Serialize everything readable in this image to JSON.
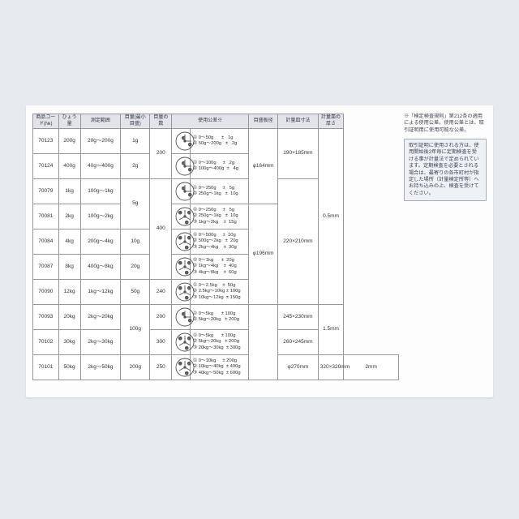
{
  "headers": [
    "商品コード(№)",
    "ひょう量",
    "測定範囲",
    "目量(最小目盛)",
    "目量の数",
    "",
    "使用公差※",
    "目盛板径",
    "計量皿寸法",
    "計量皿の厚さ"
  ],
  "rows": [
    {
      "code": "70123",
      "cap": "200g",
      "range": "20g～200g",
      "div": "1g",
      "cnt": "200",
      "icon": 2,
      "tol": "① 0～50g      ±   1g\n② 50g～200g   ±   2g",
      "plate": "φ164mm",
      "pan": "190×185mm",
      "thk": "0.5mm",
      "cnt_rs": 2,
      "plate_rs": 3,
      "pan_rs": 2,
      "thk_rs": 7
    },
    {
      "code": "70124",
      "cap": "400g",
      "range": "40g～400g",
      "div": "2g",
      "icon": 2,
      "tol": "① 0～100g     ±   2g\n② 100g～400g  ±   4g"
    },
    {
      "code": "70079",
      "cap": "1kg",
      "range": "100g～1kg",
      "div": "5g",
      "cnt": "400",
      "icon": 2,
      "tol": "① 0～250g     ±   5g\n② 250g～1kg   ±  10g",
      "div_rs": 2,
      "cnt_rs": 4,
      "pan": "220×210mm",
      "pan_rs": 5
    },
    {
      "code": "70081",
      "cap": "2kg",
      "range": "100g～2kg",
      "icon": 3,
      "tol": "① 0～250g     ±   5g\n② 250g～1kg   ±  10g\n③ 1kg～2kg    ±  15g",
      "plate": "φ196mm",
      "plate_rs": 4
    },
    {
      "code": "70084",
      "cap": "4kg",
      "range": "200g～4kg",
      "div": "10g",
      "icon": 3,
      "tol": "① 0～500g     ±  10g\n② 500g～2kg   ±  20g\n③ 2kg～4kg    ±  30g"
    },
    {
      "code": "70087",
      "cap": "8kg",
      "range": "400g～8kg",
      "div": "20g",
      "icon": 3,
      "tol": "① 0～1kg      ±  20g\n② 1kg～4kg    ±  40g\n③ 4kg～8kg    ±  60g"
    },
    {
      "code": "70090",
      "cap": "12kg",
      "range": "1kg～12kg",
      "div": "50g",
      "cnt": "240",
      "icon": 3,
      "tol": "① 0～2.5kg    ±  50g\n② 2.5kg～10kg ± 100g\n③ 10kg～12kg  ± 150g"
    },
    {
      "code": "70093",
      "cap": "20kg",
      "range": "2kg～20kg",
      "div": "100g",
      "cnt": "200",
      "icon": 2,
      "tol": "① 0～5kg      ± 100g\n② 5kg～20kg   ± 200g",
      "div_rs": 2,
      "plate": "",
      "pan": "245×230mm",
      "plate_rs": 3,
      "thk": "1.5mm",
      "thk_rs": 2
    },
    {
      "code": "70102",
      "cap": "30kg",
      "range": "2kg～30kg",
      "cnt": "300",
      "icon": 3,
      "tol": "① 0～5kg      ± 100g\n② 5kg～20kg   ± 200g\n③ 20kg～30kg  ± 300g",
      "pan": "260×245mm"
    },
    {
      "code": "70101",
      "cap": "50kg",
      "range": "2kg～50kg",
      "div": "200g",
      "cnt": "250",
      "icon": 3,
      "tol": "① 0～10kg     ± 200g\n② 10kg～40kg  ± 400g\n③ 40kg～50kg  ± 600g",
      "plate": "φ270mm",
      "pan": "320×320mm",
      "thk": "2mm"
    }
  ],
  "note1": "※「検定検査規則」第212条の適用による使用公差。使用公差とは、取引証明用に使用可能な公差。",
  "note2": "取引証明に使用される方は、使用開始後2年毎に定期検査を受ける事が計量法で定められています。定期検査を必要とされる場合は、最寄りの各市町村が指定した場所（計量検定所等）へお持ち込みの上、検査を受けてください。",
  "colors": {
    "bg": "#e8ebee",
    "sheet": "#fdfdfd",
    "border": "#999",
    "th_bg": "#e2e4ea",
    "note_bg": "#eef1f6",
    "stroke": "#555"
  }
}
